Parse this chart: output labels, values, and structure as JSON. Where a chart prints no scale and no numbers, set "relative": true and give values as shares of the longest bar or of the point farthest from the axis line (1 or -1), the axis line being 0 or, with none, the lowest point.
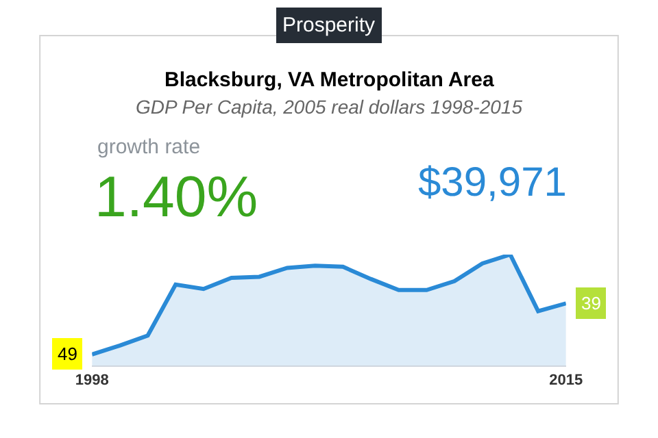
{
  "chart_data": {
    "type": "area",
    "title": "Blacksburg, VA Metropolitan Area",
    "subtitle": "GDP Per Capita, 2005 real dollars 1998-2015",
    "x": [
      1998,
      1999,
      2000,
      2001,
      2002,
      2003,
      2004,
      2005,
      2006,
      2007,
      2008,
      2009,
      2010,
      2011,
      2012,
      2013,
      2014,
      2015
    ],
    "relative": true,
    "series": [
      {
        "color": "#2a8ad6",
        "values": [
          0.1,
          0.18,
          0.27,
          0.73,
          0.69,
          0.79,
          0.8,
          0.88,
          0.9,
          0.89,
          0.78,
          0.68,
          0.68,
          0.76,
          0.92,
          1,
          0.49,
          0.56
        ]
      }
    ],
    "xlim": [
      1998,
      2015
    ],
    "xticks": [
      1998,
      2015
    ],
    "annotations": [
      "Prosperity",
      "growth rate",
      "1.40%",
      "$39,971",
      {
        "text": "49",
        "x": 1998,
        "y": 0.1
      },
      {
        "text": "39",
        "x": 2015,
        "y": 0.56
      }
    ],
    "line_style": "solid"
  }
}
